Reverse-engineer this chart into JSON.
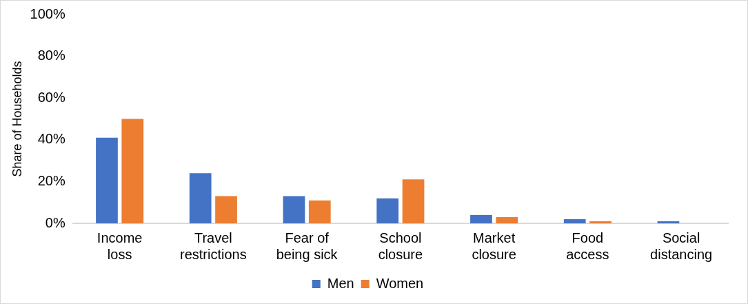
{
  "chart_data": {
    "type": "bar",
    "ylabel": "Share of Households",
    "categories": [
      "Income loss",
      "Travel restrictions",
      "Fear of being sick",
      "School closure",
      "Market closure",
      "Food access",
      "Social distancing"
    ],
    "series": [
      {
        "name": "Men",
        "color": "#4472c4",
        "values": [
          41,
          24,
          13,
          12,
          4,
          2,
          1
        ]
      },
      {
        "name": "Women",
        "color": "#ed7d31",
        "values": [
          50,
          13,
          11,
          21,
          3,
          1,
          0
        ]
      }
    ],
    "ylim": [
      0,
      100
    ],
    "yticks": [
      {
        "value": 0,
        "label": "0%"
      },
      {
        "value": 20,
        "label": "20%"
      },
      {
        "value": 40,
        "label": "40%"
      },
      {
        "value": 60,
        "label": "60%"
      },
      {
        "value": 80,
        "label": "80%"
      },
      {
        "value": 100,
        "label": "100%"
      }
    ],
    "grid": false,
    "legend": "bottom"
  }
}
